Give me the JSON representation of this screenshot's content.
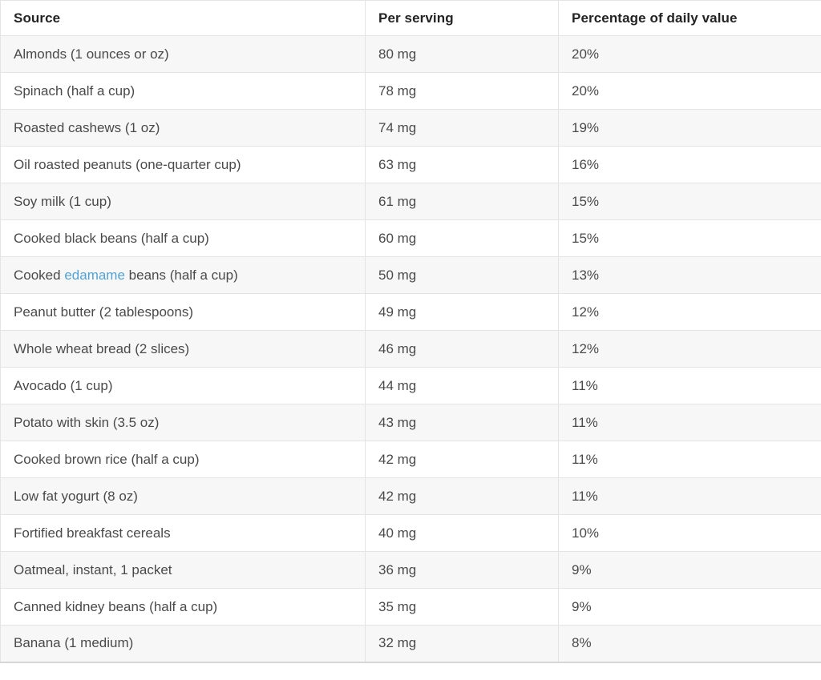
{
  "colors": {
    "link": "#54a1d5",
    "row_alt_bg": "#f7f7f7",
    "border": "#e4e4e4",
    "header_text": "#232323",
    "body_text": "#4a4a4a"
  },
  "chart_data": {
    "type": "table",
    "columns": [
      "Source",
      "Per serving",
      "Percentage of daily value"
    ],
    "rows": [
      {
        "source_prefix": "Almonds (1 ounces or oz)",
        "source_link": "",
        "source_suffix": "",
        "per_serving": "80 mg",
        "percent_dv": "20%"
      },
      {
        "source_prefix": "Spinach (half a cup)",
        "source_link": "",
        "source_suffix": "",
        "per_serving": "78 mg",
        "percent_dv": "20%"
      },
      {
        "source_prefix": "Roasted cashews (1 oz)",
        "source_link": "",
        "source_suffix": "",
        "per_serving": "74 mg",
        "percent_dv": "19%"
      },
      {
        "source_prefix": "Oil roasted peanuts (one-quarter cup)",
        "source_link": "",
        "source_suffix": "",
        "per_serving": "63 mg",
        "percent_dv": "16%"
      },
      {
        "source_prefix": "Soy milk (1 cup)",
        "source_link": "",
        "source_suffix": "",
        "per_serving": "61 mg",
        "percent_dv": "15%"
      },
      {
        "source_prefix": "Cooked black beans (half a cup)",
        "source_link": "",
        "source_suffix": "",
        "per_serving": "60 mg",
        "percent_dv": "15%"
      },
      {
        "source_prefix": "Cooked ",
        "source_link": "edamame",
        "source_suffix": " beans (half a cup)",
        "per_serving": "50 mg",
        "percent_dv": "13%"
      },
      {
        "source_prefix": "Peanut butter (2 tablespoons)",
        "source_link": "",
        "source_suffix": "",
        "per_serving": "49 mg",
        "percent_dv": "12%"
      },
      {
        "source_prefix": "Whole wheat bread (2 slices)",
        "source_link": "",
        "source_suffix": "",
        "per_serving": "46 mg",
        "percent_dv": "12%"
      },
      {
        "source_prefix": "Avocado (1 cup)",
        "source_link": "",
        "source_suffix": "",
        "per_serving": "44 mg",
        "percent_dv": "11%"
      },
      {
        "source_prefix": "Potato with skin (3.5 oz)",
        "source_link": "",
        "source_suffix": "",
        "per_serving": "43 mg",
        "percent_dv": "11%"
      },
      {
        "source_prefix": "Cooked brown rice (half a cup)",
        "source_link": "",
        "source_suffix": "",
        "per_serving": "42 mg",
        "percent_dv": "11%"
      },
      {
        "source_prefix": "Low fat yogurt (8 oz)",
        "source_link": "",
        "source_suffix": "",
        "per_serving": "42 mg",
        "percent_dv": "11%"
      },
      {
        "source_prefix": "Fortified breakfast cereals",
        "source_link": "",
        "source_suffix": "",
        "per_serving": "40 mg",
        "percent_dv": "10%"
      },
      {
        "source_prefix": "Oatmeal, instant, 1 packet",
        "source_link": "",
        "source_suffix": "",
        "per_serving": "36 mg",
        "percent_dv": "9%"
      },
      {
        "source_prefix": "Canned kidney beans (half a cup)",
        "source_link": "",
        "source_suffix": "",
        "per_serving": "35 mg",
        "percent_dv": "9%"
      },
      {
        "source_prefix": "Banana (1 medium)",
        "source_link": "",
        "source_suffix": "",
        "per_serving": "32 mg",
        "percent_dv": "8%"
      }
    ]
  }
}
